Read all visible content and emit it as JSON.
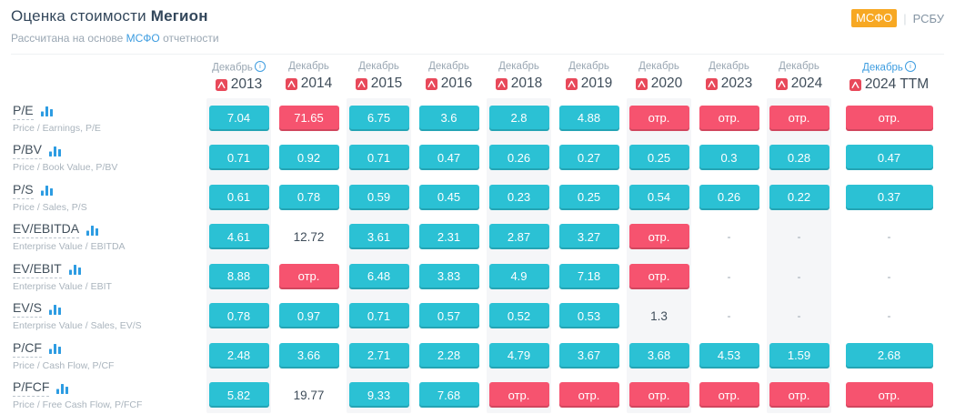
{
  "header": {
    "title_prefix": "Оценка стоимости",
    "title_company": "Мегион",
    "subtitle_prefix": "Рассчитана на основе",
    "subtitle_link": "МСФО",
    "subtitle_suffix": "отчетности",
    "toggle": {
      "active": "МСФО",
      "divider": "|",
      "inactive": "РСБУ"
    }
  },
  "colors": {
    "accent_teal": "#2bc1d4",
    "negative_red": "#f6536f",
    "toggle_orange": "#f7a823",
    "link_blue": "#3e9de0",
    "stripe_gray": "#f5f6f8",
    "pdf_icon_red": "#e8495a"
  },
  "table": {
    "negative_label": "отр.",
    "empty_label": "-",
    "columns": [
      {
        "month": "Декабрь",
        "year": "2013",
        "info": true,
        "link": false,
        "striped": true
      },
      {
        "month": "Декабрь",
        "year": "2014",
        "info": false,
        "link": false,
        "striped": false
      },
      {
        "month": "Декабрь",
        "year": "2015",
        "info": false,
        "link": false,
        "striped": true
      },
      {
        "month": "Декабрь",
        "year": "2016",
        "info": false,
        "link": false,
        "striped": false
      },
      {
        "month": "Декабрь",
        "year": "2018",
        "info": false,
        "link": false,
        "striped": true
      },
      {
        "month": "Декабрь",
        "year": "2019",
        "info": false,
        "link": false,
        "striped": false
      },
      {
        "month": "Декабрь",
        "year": "2020",
        "info": false,
        "link": false,
        "striped": true
      },
      {
        "month": "Декабрь",
        "year": "2023",
        "info": false,
        "link": false,
        "striped": false
      },
      {
        "month": "Декабрь",
        "year": "2024",
        "info": false,
        "link": false,
        "striped": true
      },
      {
        "month": "Декабрь",
        "year": "2024 TTM",
        "info": true,
        "link": true,
        "striped": false
      }
    ],
    "rows": [
      {
        "label": "P/E",
        "sublabel": "Price / Earnings, P/E",
        "cells": [
          {
            "text": "7.04",
            "style": "teal"
          },
          {
            "text": "71.65",
            "style": "red"
          },
          {
            "text": "6.75",
            "style": "teal"
          },
          {
            "text": "3.6",
            "style": "teal"
          },
          {
            "text": "2.8",
            "style": "teal"
          },
          {
            "text": "4.88",
            "style": "teal"
          },
          {
            "text": "отр.",
            "style": "red"
          },
          {
            "text": "отр.",
            "style": "red"
          },
          {
            "text": "отр.",
            "style": "red"
          },
          {
            "text": "отр.",
            "style": "red"
          }
        ]
      },
      {
        "label": "P/BV",
        "sublabel": "Price / Book Value, P/BV",
        "cells": [
          {
            "text": "0.71",
            "style": "teal"
          },
          {
            "text": "0.92",
            "style": "teal"
          },
          {
            "text": "0.71",
            "style": "teal"
          },
          {
            "text": "0.47",
            "style": "teal"
          },
          {
            "text": "0.26",
            "style": "teal"
          },
          {
            "text": "0.27",
            "style": "teal"
          },
          {
            "text": "0.25",
            "style": "teal"
          },
          {
            "text": "0.3",
            "style": "teal"
          },
          {
            "text": "0.28",
            "style": "teal"
          },
          {
            "text": "0.47",
            "style": "teal"
          }
        ]
      },
      {
        "label": "P/S",
        "sublabel": "Price / Sales, P/S",
        "cells": [
          {
            "text": "0.61",
            "style": "teal"
          },
          {
            "text": "0.78",
            "style": "teal"
          },
          {
            "text": "0.59",
            "style": "teal"
          },
          {
            "text": "0.45",
            "style": "teal"
          },
          {
            "text": "0.23",
            "style": "teal"
          },
          {
            "text": "0.25",
            "style": "teal"
          },
          {
            "text": "0.54",
            "style": "teal"
          },
          {
            "text": "0.26",
            "style": "teal"
          },
          {
            "text": "0.22",
            "style": "teal"
          },
          {
            "text": "0.37",
            "style": "teal"
          }
        ]
      },
      {
        "label": "EV/EBITDA",
        "sublabel": "Enterprise Value / EBITDA",
        "cells": [
          {
            "text": "4.61",
            "style": "teal"
          },
          {
            "text": "12.72",
            "style": "plain"
          },
          {
            "text": "3.61",
            "style": "teal"
          },
          {
            "text": "2.31",
            "style": "teal"
          },
          {
            "text": "2.87",
            "style": "teal"
          },
          {
            "text": "3.27",
            "style": "teal"
          },
          {
            "text": "отр.",
            "style": "red"
          },
          {
            "text": "-",
            "style": "dash"
          },
          {
            "text": "-",
            "style": "dash"
          },
          {
            "text": "-",
            "style": "dash"
          }
        ]
      },
      {
        "label": "EV/EBIT",
        "sublabel": "Enterprise Value / EBIT",
        "cells": [
          {
            "text": "8.88",
            "style": "teal"
          },
          {
            "text": "отр.",
            "style": "red"
          },
          {
            "text": "6.48",
            "style": "teal"
          },
          {
            "text": "3.83",
            "style": "teal"
          },
          {
            "text": "4.9",
            "style": "teal"
          },
          {
            "text": "7.18",
            "style": "teal"
          },
          {
            "text": "отр.",
            "style": "red"
          },
          {
            "text": "-",
            "style": "dash"
          },
          {
            "text": "-",
            "style": "dash"
          },
          {
            "text": "-",
            "style": "dash"
          }
        ]
      },
      {
        "label": "EV/S",
        "sublabel": "Enterprise Value / Sales, EV/S",
        "cells": [
          {
            "text": "0.78",
            "style": "teal"
          },
          {
            "text": "0.97",
            "style": "teal"
          },
          {
            "text": "0.71",
            "style": "teal"
          },
          {
            "text": "0.57",
            "style": "teal"
          },
          {
            "text": "0.52",
            "style": "teal"
          },
          {
            "text": "0.53",
            "style": "teal"
          },
          {
            "text": "1.3",
            "style": "plain"
          },
          {
            "text": "-",
            "style": "dash"
          },
          {
            "text": "-",
            "style": "dash"
          },
          {
            "text": "-",
            "style": "dash"
          }
        ]
      },
      {
        "label": "P/CF",
        "sublabel": "Price / Cash Flow, P/CF",
        "cells": [
          {
            "text": "2.48",
            "style": "teal"
          },
          {
            "text": "3.66",
            "style": "teal"
          },
          {
            "text": "2.71",
            "style": "teal"
          },
          {
            "text": "2.28",
            "style": "teal"
          },
          {
            "text": "4.79",
            "style": "teal"
          },
          {
            "text": "3.67",
            "style": "teal"
          },
          {
            "text": "3.68",
            "style": "teal"
          },
          {
            "text": "4.53",
            "style": "teal"
          },
          {
            "text": "1.59",
            "style": "teal"
          },
          {
            "text": "2.68",
            "style": "teal"
          }
        ]
      },
      {
        "label": "P/FCF",
        "sublabel": "Price / Free Cash Flow, P/FCF",
        "cells": [
          {
            "text": "5.82",
            "style": "teal"
          },
          {
            "text": "19.77",
            "style": "plain"
          },
          {
            "text": "9.33",
            "style": "teal"
          },
          {
            "text": "7.68",
            "style": "teal"
          },
          {
            "text": "отр.",
            "style": "red"
          },
          {
            "text": "отр.",
            "style": "red"
          },
          {
            "text": "отр.",
            "style": "red"
          },
          {
            "text": "отр.",
            "style": "red"
          },
          {
            "text": "отр.",
            "style": "red"
          },
          {
            "text": "отр.",
            "style": "red"
          }
        ]
      }
    ]
  }
}
